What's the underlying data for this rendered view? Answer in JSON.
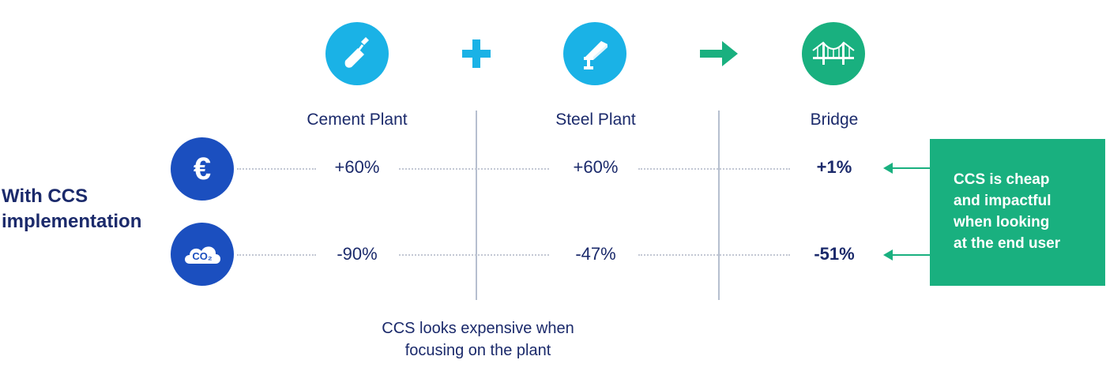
{
  "colors": {
    "icon_blue": "#1ab2e6",
    "navy": "#1b4fbf",
    "green": "#19b07f",
    "text": "#1b2a6b"
  },
  "top_icons": [
    {
      "icon": "trowel-icon"
    },
    {
      "operator": "plus-icon"
    },
    {
      "icon": "steel-beam-icon"
    },
    {
      "operator": "arrow-right-icon"
    },
    {
      "icon": "bridge-icon"
    }
  ],
  "columns": [
    {
      "label": "Cement Plant"
    },
    {
      "label": "Steel Plant"
    },
    {
      "label": "Bridge"
    }
  ],
  "rows": [
    {
      "icon": "euro-icon",
      "values": [
        "+60%",
        "+60%",
        "+1%"
      ]
    },
    {
      "icon": "co2-cloud-icon",
      "icon_text": "CO₂",
      "values": [
        "-90%",
        "-47%",
        "-51%"
      ]
    }
  ],
  "row_label": {
    "line1": "With CCS",
    "line2": "implementation"
  },
  "caption": {
    "line1": "CCS looks expensive when",
    "line2": "focusing on the plant"
  },
  "callout": {
    "lines": [
      "CCS is cheap",
      "and impactful",
      "when looking",
      "at the end user"
    ]
  },
  "euro_symbol": "€"
}
